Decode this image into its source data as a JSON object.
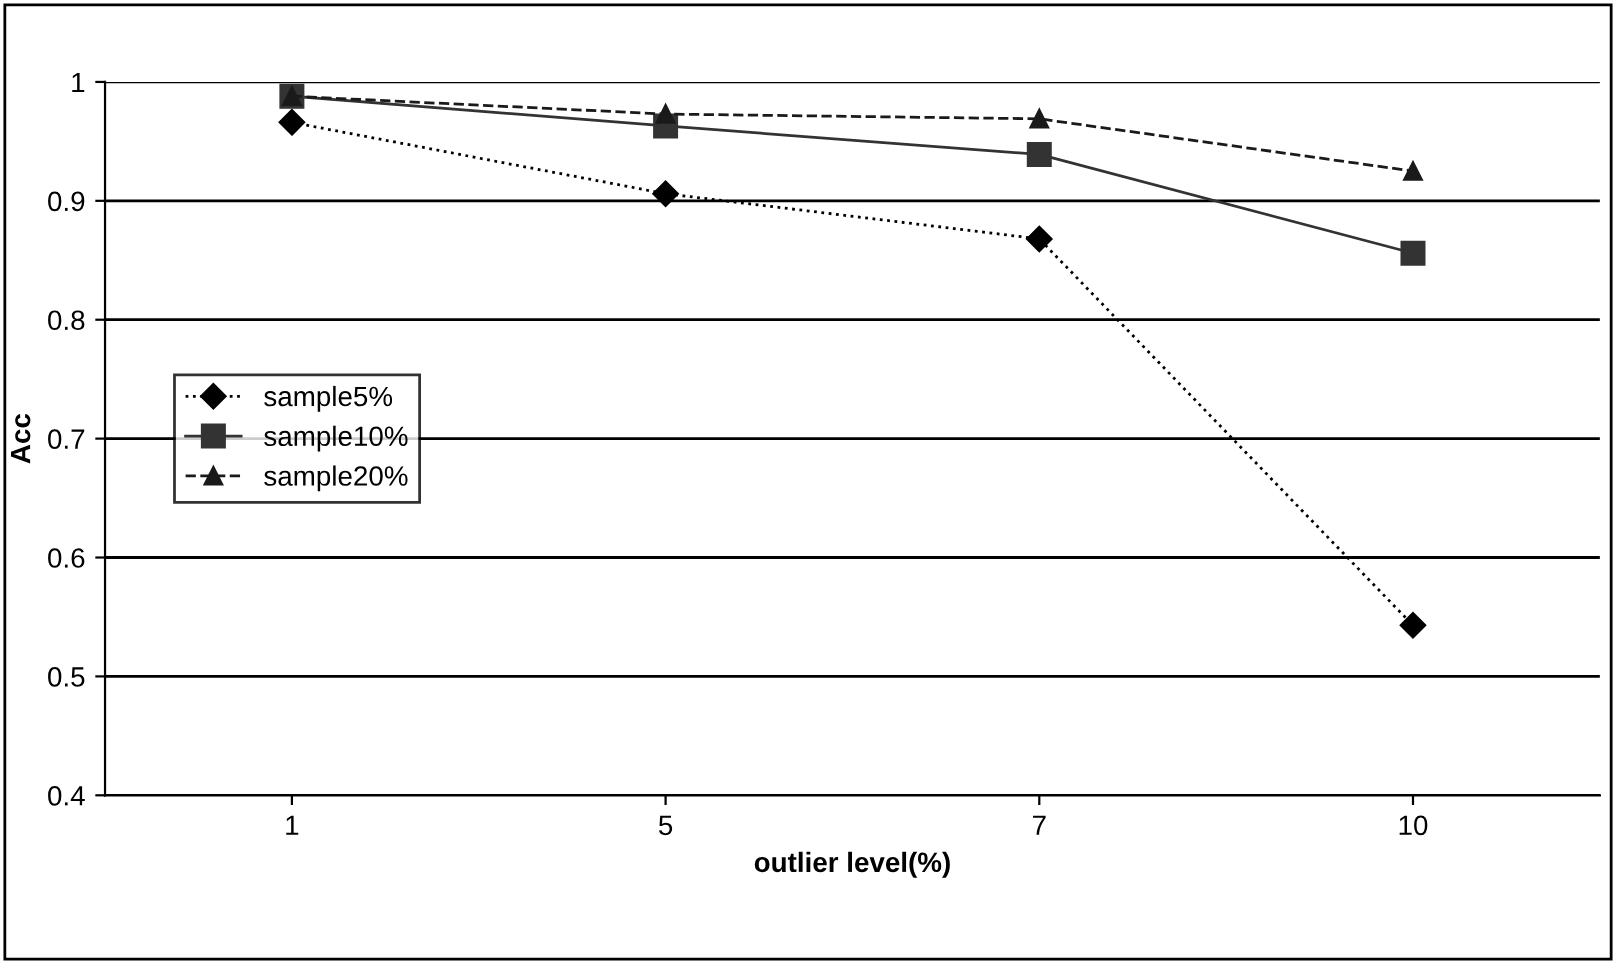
{
  "chart_data": {
    "type": "line",
    "xlabel": "outlier level(%)",
    "ylabel": "Acc",
    "categories": [
      "1",
      "5",
      "7",
      "10"
    ],
    "series": [
      {
        "name": "sample5%",
        "color": "#000000",
        "marker": "diamond",
        "line_style": "dotted",
        "values": [
          0.966,
          0.906,
          0.868,
          0.543
        ]
      },
      {
        "name": "sample10%",
        "color": "#333333",
        "marker": "square",
        "line_style": "solid",
        "values": [
          0.988,
          0.963,
          0.939,
          0.856
        ]
      },
      {
        "name": "sample20%",
        "color": "#1a1a1a",
        "marker": "triangle",
        "line_style": "dashed",
        "values": [
          0.988,
          0.973,
          0.969,
          0.925
        ]
      }
    ],
    "ylim": [
      0.4,
      1
    ],
    "yticks": [
      {
        "value": 0.4,
        "label": "0.4"
      },
      {
        "value": 0.5,
        "label": "0.5"
      },
      {
        "value": 0.6,
        "label": "0.6"
      },
      {
        "value": 0.7,
        "label": "0.7"
      },
      {
        "value": 0.8,
        "label": "0.8"
      },
      {
        "value": 0.9,
        "label": "0.9"
      },
      {
        "value": 1,
        "label": "1"
      }
    ],
    "grid": "y",
    "legend": "left"
  }
}
